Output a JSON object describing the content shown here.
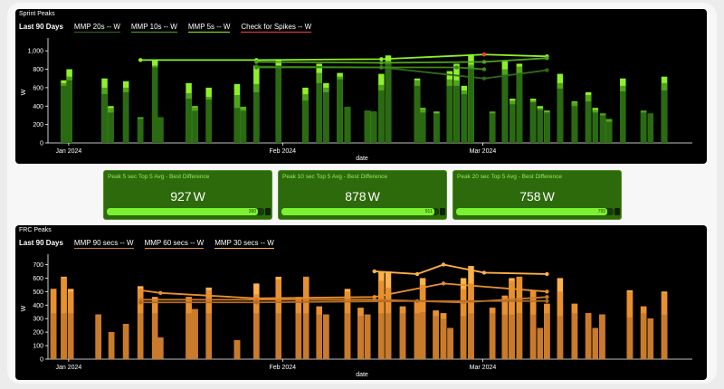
{
  "colors": {
    "green_dark": "#2a6a12",
    "green_mid": "#4fa41a",
    "green_light": "#8ef02a",
    "orange_dark": "#c97a2a",
    "orange_mid": "#e8902f",
    "orange_light": "#ffb14a",
    "red_point": "#ff3d3d"
  },
  "sprint": {
    "title": "Sprint Peaks",
    "period": "Last 90 Days",
    "legend": [
      {
        "label": "MMP 20s  -- W",
        "color": "#2e6b1a"
      },
      {
        "label": "MMP 10s  -- W",
        "color": "#4fa41a"
      },
      {
        "label": "MMP 5s  -- W",
        "color": "#8ef02a"
      },
      {
        "label": "Check for Spikes  -- W",
        "color": "#ff3d3d"
      }
    ]
  },
  "frc": {
    "title": "FRC Peaks",
    "period": "Last 90 Days",
    "legend": [
      {
        "label": "MMP 90 secs  -- W",
        "color": "#c97a2a"
      },
      {
        "label": "MMP 60 secs  -- W",
        "color": "#e8902f"
      },
      {
        "label": "MMP 30 secs  -- W",
        "color": "#ffb14a"
      }
    ]
  },
  "cards": [
    {
      "title": "Peak 5 sec Top 5 Avg - Best Difference",
      "value": "927",
      "unit": "W",
      "bar_text": "360",
      "fill": 0.96
    },
    {
      "title": "Peak 10 sec Top 5 Avg - Best Difference",
      "value": "878",
      "unit": "W",
      "bar_text": "911",
      "fill": 0.97
    },
    {
      "title": "Peak 20 sec Top 5 Avg - Best Difference",
      "value": "758",
      "unit": "W",
      "bar_text": "793",
      "fill": 0.96
    }
  ],
  "chart_data": [
    {
      "type": "bar",
      "title": "Sprint Peaks",
      "xlabel": "date",
      "ylabel": "W",
      "ylim": [
        0,
        1100
      ],
      "yticks": [
        "0",
        "200",
        "400",
        "600",
        "800",
        "1,000"
      ],
      "xtick_labels": [
        "Jan 2024",
        "Feb 2024",
        "Mar 2024"
      ],
      "xtick_days": [
        3,
        34,
        63
      ],
      "x_range_days": [
        0,
        91
      ],
      "bars_day": [
        2.3,
        3.1,
        8.2,
        9.1,
        11.3,
        13.4,
        15.5,
        16.3,
        20.4,
        21.3,
        23.3,
        27.4,
        28.3,
        30.2,
        33.4,
        37.3,
        39.3,
        40.3,
        42.3,
        43.4,
        46.3,
        47.2,
        48.3,
        49.3,
        53.5,
        54.3,
        56.3,
        58.2,
        59.2,
        60.3,
        61.3,
        64.4,
        66.2,
        67.3,
        68.3,
        70.3,
        71.3,
        72.3,
        74.2,
        76.3,
        78.3,
        79.3,
        80.4,
        81.3,
        83.3,
        86.3,
        87.3,
        89.3
      ],
      "series": [
        {
          "name": "MMP 20s",
          "values": [
            620,
            680,
            530,
            330,
            550,
            260,
            820,
            280,
            480,
            350,
            470,
            380,
            350,
            550,
            820,
            460,
            650,
            550,
            690,
            390,
            350,
            340,
            570,
            860,
            620,
            330,
            320,
            620,
            620,
            530,
            810,
            320,
            740,
            420,
            750,
            440,
            360,
            330,
            590,
            400,
            450,
            330,
            300,
            230,
            560,
            330,
            320,
            570
          ]
        },
        {
          "name": "MMP 10s",
          "values": [
            650,
            720,
            600,
            380,
            600,
            280,
            840,
            280,
            540,
            390,
            500,
            520,
            380,
            640,
            840,
            530,
            760,
            600,
            720,
            390,
            350,
            340,
            630,
            890,
            680,
            370,
            330,
            690,
            680,
            570,
            850,
            340,
            800,
            460,
            830,
            460,
            380,
            340,
            650,
            440,
            520,
            360,
            320,
            260,
            620,
            350,
            300,
            650
          ]
        },
        {
          "name": "MMP 5s",
          "values": [
            680,
            800,
            700,
            400,
            670,
            280,
            900,
            280,
            650,
            400,
            600,
            640,
            390,
            840,
            900,
            600,
            860,
            650,
            760,
            390,
            350,
            340,
            750,
            950,
            700,
            380,
            340,
            780,
            860,
            620,
            960,
            340,
            900,
            480,
            860,
            480,
            400,
            350,
            750,
            450,
            550,
            380,
            320,
            260,
            700,
            350,
            320,
            720
          ]
        }
      ],
      "lines": [
        {
          "name": "MMP 5s",
          "color": "#8ef02a",
          "x": [
            13.4,
            30.2,
            48.3,
            63.2,
            72.3
          ],
          "y": [
            900,
            900,
            910,
            960,
            940
          ],
          "highlight": [
            false,
            false,
            false,
            true,
            false
          ]
        },
        {
          "name": "MMP 10s",
          "color": "#4fa41a",
          "x": [
            30.2,
            48.3,
            63.2,
            72.3
          ],
          "y": [
            880,
            870,
            880,
            920
          ],
          "highlight": [
            false,
            false,
            false,
            false
          ]
        },
        {
          "name": "MMP 20s",
          "color": "#2e6b1a",
          "x": [
            30.2,
            48.3,
            63.2,
            72.3
          ],
          "y": [
            830,
            820,
            700,
            790
          ],
          "highlight": [
            false,
            false,
            false,
            false
          ]
        },
        {
          "name": "MMP 20s",
          "color": "#3e8a18",
          "x": [
            30.2,
            48.3,
            59.2,
            63.2
          ],
          "y": [
            820,
            820,
            820,
            800
          ],
          "highlight": [
            false,
            false,
            false,
            false
          ]
        }
      ]
    },
    {
      "type": "bar",
      "title": "FRC Peaks",
      "xlabel": "date",
      "ylabel": "W",
      "ylim": [
        0,
        750
      ],
      "yticks": [
        "0",
        "100",
        "200",
        "300",
        "400",
        "500",
        "600",
        "700"
      ],
      "xtick_labels": [
        "Jan 2024",
        "Feb 2024",
        "Mar 2024"
      ],
      "xtick_days": [
        3,
        34,
        63
      ],
      "x_range_days": [
        0,
        91
      ],
      "bars_day": [
        0.8,
        2.3,
        3.3,
        7.3,
        9.2,
        11.3,
        13.4,
        15.5,
        16.3,
        20.4,
        21.3,
        23.3,
        27.4,
        30.2,
        33.4,
        36.3,
        37.4,
        39.3,
        40.3,
        43.4,
        45.3,
        46.3,
        48.3,
        49.3,
        51.4,
        53.5,
        54.3,
        56.2,
        57.3,
        58.3,
        60.2,
        61.3,
        64.4,
        66.2,
        67.2,
        68.3,
        70.3,
        71.3,
        72.3,
        74.2,
        76.3,
        78.3,
        79.3,
        80.3,
        84.3,
        86.3,
        87.3,
        89.3
      ],
      "series": [
        {
          "name": "MMP 90 secs",
          "values": [
            340,
            340,
            340,
            330,
            200,
            260,
            340,
            340,
            160,
            340,
            370,
            340,
            140,
            340,
            340,
            340,
            340,
            330,
            330,
            340,
            320,
            330,
            340,
            340,
            340,
            340,
            350,
            320,
            300,
            230,
            320,
            340,
            340,
            330,
            330,
            340,
            330,
            230,
            340,
            320,
            340,
            340,
            230,
            330,
            310,
            340,
            300,
            330
          ]
        },
        {
          "name": "MMP 60 secs",
          "values": [
            520,
            600,
            500,
            330,
            200,
            260,
            520,
            440,
            160,
            460,
            370,
            510,
            140,
            480,
            590,
            440,
            610,
            390,
            330,
            500,
            380,
            330,
            580,
            530,
            390,
            430,
            550,
            360,
            340,
            230,
            520,
            560,
            380,
            470,
            580,
            610,
            510,
            230,
            410,
            500,
            410,
            340,
            230,
            330,
            500,
            390,
            300,
            490
          ]
        },
        {
          "name": "MMP 30 secs",
          "values": [
            520,
            610,
            520,
            330,
            200,
            260,
            540,
            460,
            160,
            460,
            370,
            530,
            140,
            560,
            610,
            460,
            610,
            390,
            330,
            520,
            380,
            330,
            650,
            650,
            390,
            430,
            600,
            360,
            340,
            230,
            600,
            690,
            380,
            470,
            600,
            610,
            510,
            230,
            410,
            600,
            410,
            340,
            230,
            330,
            510,
            390,
            300,
            500
          ]
        }
      ],
      "lines": [
        {
          "name": "MMP 30 secs",
          "color": "#ffb14a",
          "x": [
            47.3,
            53.5,
            57.3,
            63.2,
            72.3
          ],
          "y": [
            650,
            630,
            700,
            640,
            630
          ],
          "highlight": [
            false,
            false,
            false,
            false,
            false
          ]
        },
        {
          "name": "MMP 60 secs",
          "color": "#e8902f",
          "x": [
            13.4,
            16.3,
            30.2,
            47.3,
            57.3,
            72.3
          ],
          "y": [
            510,
            490,
            450,
            460,
            560,
            500
          ],
          "highlight": [
            false,
            false,
            false,
            false,
            false,
            false
          ]
        },
        {
          "name": "MMP 90 secs",
          "color": "#c97a2a",
          "x": [
            13.4,
            30.2,
            47.3,
            60.2,
            72.3
          ],
          "y": [
            440,
            440,
            440,
            420,
            460
          ],
          "highlight": [
            false,
            false,
            false,
            false,
            false
          ]
        },
        {
          "name": "MMP 90 secs",
          "color": "#b56a20",
          "x": [
            13.4,
            30.2,
            53.5,
            72.3
          ],
          "y": [
            420,
            420,
            430,
            430
          ],
          "highlight": [
            false,
            false,
            false,
            false
          ]
        }
      ]
    }
  ]
}
